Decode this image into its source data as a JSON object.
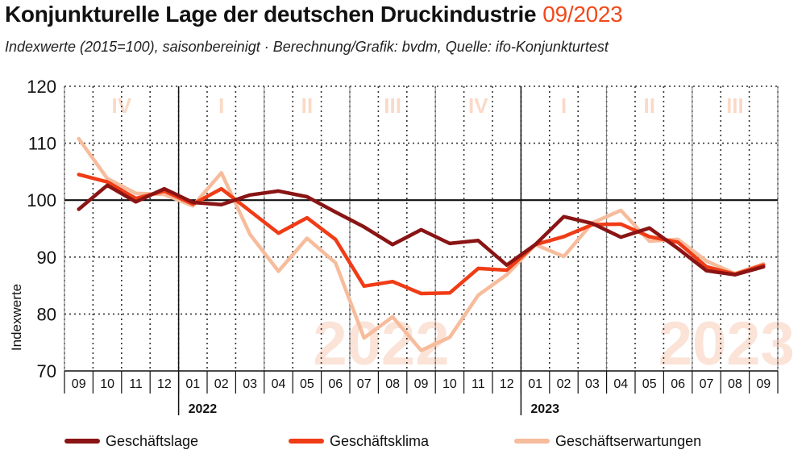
{
  "header": {
    "title": "Konjunkturelle Lage der deutschen Druckindustrie",
    "period": "09/2023",
    "subtitle": "Indexwerte (2015=100), saisonbereinigt · Berechnung/Grafik: bvdm, Quelle: ifo-Konjunkturtest"
  },
  "colors": {
    "title_accent": "#f04a1c",
    "reference_line": "#111111",
    "grid": "#333333",
    "watermark": "#fbe3d8",
    "quarter_labels": "#fbd9c7"
  },
  "chart_data": {
    "type": "line",
    "ylabel": "Indexwerte",
    "ylim": [
      70,
      120
    ],
    "yticks": [
      70,
      80,
      90,
      100,
      110,
      120
    ],
    "reference_value": 100,
    "grid": true,
    "legend_position": "bottom",
    "x": [
      "09",
      "10",
      "11",
      "12",
      "01",
      "02",
      "03",
      "04",
      "05",
      "06",
      "07",
      "08",
      "09",
      "10",
      "11",
      "12",
      "01",
      "02",
      "03",
      "04",
      "05",
      "06",
      "07",
      "08",
      "09"
    ],
    "years": [
      {
        "label": "2022",
        "start_index": 4
      },
      {
        "label": "2023",
        "start_index": 16
      }
    ],
    "quarters": [
      {
        "label": "IV",
        "from_index": 0,
        "to_index": 3
      },
      {
        "label": "I",
        "from_index": 4,
        "to_index": 6
      },
      {
        "label": "II",
        "from_index": 7,
        "to_index": 9
      },
      {
        "label": "III",
        "from_index": 10,
        "to_index": 12
      },
      {
        "label": "IV",
        "from_index": 13,
        "to_index": 15
      },
      {
        "label": "I",
        "from_index": 16,
        "to_index": 18
      },
      {
        "label": "II",
        "from_index": 19,
        "to_index": 21
      },
      {
        "label": "III",
        "from_index": 22,
        "to_index": 24
      }
    ],
    "watermark_years": [
      {
        "label": "2022",
        "center_index": 10.6
      },
      {
        "label": "2023",
        "center_index": 22.7
      }
    ],
    "series": [
      {
        "name": "Geschäftserwartungen",
        "color": "#f6bc9c",
        "values": [
          110.8,
          103.8,
          101.2,
          101.0,
          99.0,
          104.8,
          94.0,
          87.5,
          93.3,
          89.0,
          75.8,
          79.5,
          73.6,
          75.9,
          83.3,
          86.9,
          92.2,
          90.1,
          96.0,
          98.2,
          92.8,
          93.1,
          89.3,
          87.1,
          88.8
        ]
      },
      {
        "name": "Geschäftsklima",
        "color": "#f03c16",
        "values": [
          104.5,
          103.2,
          100.3,
          101.6,
          99.3,
          102.0,
          98.1,
          94.2,
          96.9,
          93.1,
          84.9,
          85.7,
          83.6,
          83.7,
          88.0,
          87.7,
          92.2,
          93.6,
          95.7,
          95.8,
          93.6,
          92.6,
          88.3,
          87.0,
          88.6
        ]
      },
      {
        "name": "Geschäftslage",
        "color": "#8a1414",
        "values": [
          98.4,
          102.6,
          99.7,
          102.0,
          99.6,
          99.2,
          100.9,
          101.6,
          100.6,
          97.9,
          95.3,
          92.2,
          94.8,
          92.4,
          92.9,
          88.6,
          92.2,
          97.1,
          95.9,
          93.5,
          95.1,
          91.5,
          87.6,
          86.9,
          88.3
        ]
      }
    ],
    "legend_order": [
      "Geschäftslage",
      "Geschäftsklima",
      "Geschäftserwartungen"
    ]
  }
}
